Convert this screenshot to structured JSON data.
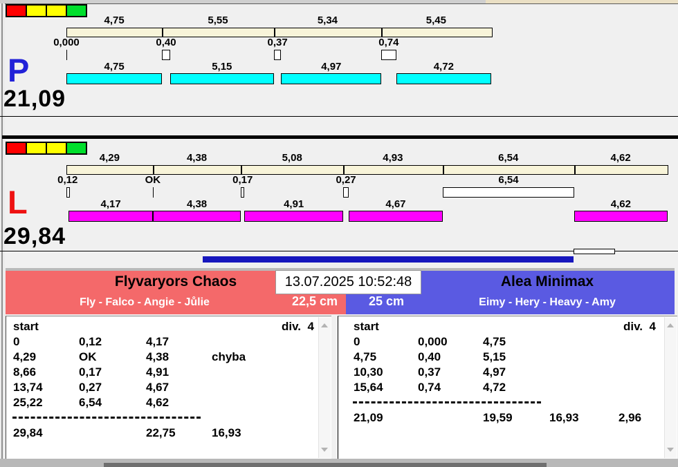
{
  "window": {
    "timestamp": "13.07.2025 10:52:48"
  },
  "colors": {
    "background": "#f0f0f0",
    "track_fill": "#f8f4d9",
    "lane_p_bar": "#00ffff",
    "lane_l_bar": "#ff00ff",
    "lane_p_letter": "#2121d8",
    "lane_l_letter": "#ee1111",
    "team_left_accent": "#f4696a",
    "team_right_accent": "#5a5ae2",
    "progress": "#1717bd",
    "light_red": "#ff0000",
    "light_yellow": "#ffff00",
    "light_green": "#00df2c"
  },
  "lanes": [
    {
      "id": "p",
      "letter": "P",
      "total": "21,09",
      "lights": [
        "light_red",
        "light_yellow",
        "light_yellow",
        "light_green"
      ],
      "top_segments": [
        {
          "label": "4,75",
          "t": 4.75
        },
        {
          "label": "5,55",
          "t": 5.55
        },
        {
          "label": "5,34",
          "t": 5.34
        },
        {
          "label": "5,45",
          "t": 5.45
        }
      ],
      "events": [
        {
          "kind": "cp",
          "style": "tick",
          "label": "0,000",
          "t": 0
        },
        {
          "kind": "run",
          "label": "4,75",
          "t": 4.75
        },
        {
          "kind": "cp",
          "style": "box",
          "label": "0,40",
          "t": 0.4
        },
        {
          "kind": "run",
          "label": "5,15",
          "t": 5.15
        },
        {
          "kind": "cp",
          "style": "box",
          "label": "0,37",
          "t": 0.37
        },
        {
          "kind": "run",
          "label": "4,97",
          "t": 4.97
        },
        {
          "kind": "cp",
          "style": "box",
          "label": "0,74",
          "t": 0.74
        },
        {
          "kind": "run",
          "label": "4,72",
          "t": 4.72
        }
      ]
    },
    {
      "id": "l",
      "letter": "L",
      "total": "29,84",
      "lights": [
        "light_red",
        "light_yellow",
        "light_yellow",
        "light_green"
      ],
      "top_segments": [
        {
          "label": "4,29",
          "t": 4.29
        },
        {
          "label": "4,38",
          "t": 4.38
        },
        {
          "label": "5,08",
          "t": 5.08
        },
        {
          "label": "4,93",
          "t": 4.93
        },
        {
          "label": "6,54",
          "t": 6.54
        },
        {
          "label": "4,62",
          "t": 4.62
        }
      ],
      "events": [
        {
          "kind": "cp",
          "style": "box",
          "label": "0,12",
          "t": 0.12
        },
        {
          "kind": "run",
          "label": "4,17",
          "t": 4.17
        },
        {
          "kind": "cp",
          "style": "tick",
          "label": "OK",
          "t": 0
        },
        {
          "kind": "run",
          "label": "4,38",
          "t": 4.38
        },
        {
          "kind": "cp",
          "style": "box",
          "label": "0,17",
          "t": 0.17
        },
        {
          "kind": "run",
          "label": "4,91",
          "t": 4.91
        },
        {
          "kind": "cp",
          "style": "box",
          "label": "0,27",
          "t": 0.27
        },
        {
          "kind": "run",
          "label": "4,67",
          "t": 4.67
        },
        {
          "kind": "cp",
          "style": "box",
          "label": "6,54",
          "t": 6.54
        },
        {
          "kind": "run",
          "label": "4,62",
          "t": 4.62
        }
      ]
    }
  ],
  "teams": [
    {
      "name": "Flyvaryors Chaos",
      "dogs": "Fly - Falco - Angie - Jůlie",
      "jump_height": "22,5 cm",
      "table": {
        "start_label": "start",
        "division_label": "div.  4",
        "rows": [
          [
            "0",
            "0,12",
            "4,17",
            ""
          ],
          [
            "4,29",
            "OK",
            "4,38",
            "chyba"
          ],
          [
            "8,66",
            "0,17",
            "4,91",
            ""
          ],
          [
            "13,74",
            "0,27",
            "4,67",
            ""
          ],
          [
            "25,22",
            "6,54",
            "4,62",
            ""
          ]
        ],
        "totals": [
          "29,84",
          "",
          "22,75",
          "16,93"
        ]
      }
    },
    {
      "name": "Alea Minimax",
      "dogs": "Eimy - Hery - Heavy - Amy",
      "jump_height": "25 cm",
      "table": {
        "start_label": "start",
        "division_label": "div.  4",
        "rows": [
          [
            "0",
            "0,000",
            "4,75",
            "",
            ""
          ],
          [
            "4,75",
            "0,40",
            "5,15",
            "",
            ""
          ],
          [
            "10,30",
            "0,37",
            "4,97",
            "",
            ""
          ],
          [
            "15,64",
            "0,74",
            "4,72",
            "",
            ""
          ]
        ],
        "totals": [
          "21,09",
          "",
          "19,59",
          "16,93",
          "2,96"
        ]
      }
    }
  ]
}
